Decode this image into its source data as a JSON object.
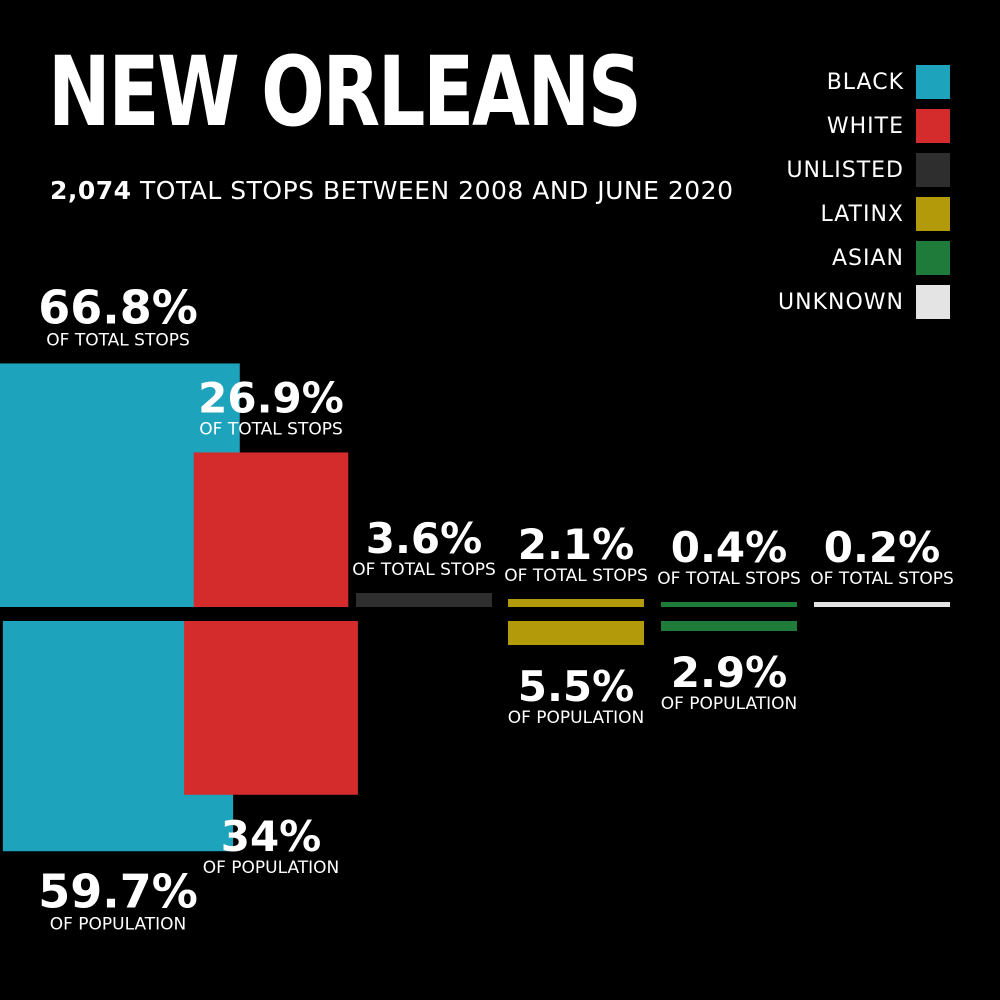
{
  "title": "NEW ORLEANS",
  "subtitle": {
    "total": "2,074",
    "rest": "TOTAL STOPS BETWEEN 2008 AND JUNE 2020"
  },
  "captions": {
    "stops": "OF TOTAL STOPS",
    "population": "OF POPULATION"
  },
  "legend": [
    {
      "label": "BLACK",
      "color": "#1ea3bd"
    },
    {
      "label": "WHITE",
      "color": "#d42c2c"
    },
    {
      "label": "UNLISTED",
      "color": "#2e2e2e"
    },
    {
      "label": "LATINX",
      "color": "#b39a0a"
    },
    {
      "label": "ASIAN",
      "color": "#1e7b3a"
    },
    {
      "label": "UNKNOWN",
      "color": "#e4e4e4"
    }
  ],
  "chart_data": {
    "type": "bar",
    "categories": [
      "BLACK",
      "WHITE",
      "UNLISTED",
      "LATINX",
      "ASIAN",
      "UNKNOWN"
    ],
    "series": [
      {
        "name": "OF TOTAL STOPS",
        "values": [
          66.8,
          26.9,
          3.6,
          2.1,
          0.4,
          0.2
        ]
      },
      {
        "name": "OF POPULATION",
        "values": [
          59.7,
          34,
          null,
          5.5,
          2.9,
          null
        ]
      }
    ],
    "value_labels": {
      "stops": [
        "66.8%",
        "26.9%",
        "3.6%",
        "2.1%",
        "0.4%",
        "0.2%"
      ],
      "population": [
        "59.7%",
        "34%",
        "",
        "5.5%",
        "2.9%",
        ""
      ]
    },
    "colors": [
      "#1ea3bd",
      "#d42c2c",
      "#2e2e2e",
      "#b39a0a",
      "#1e7b3a",
      "#e4e4e4"
    ]
  }
}
